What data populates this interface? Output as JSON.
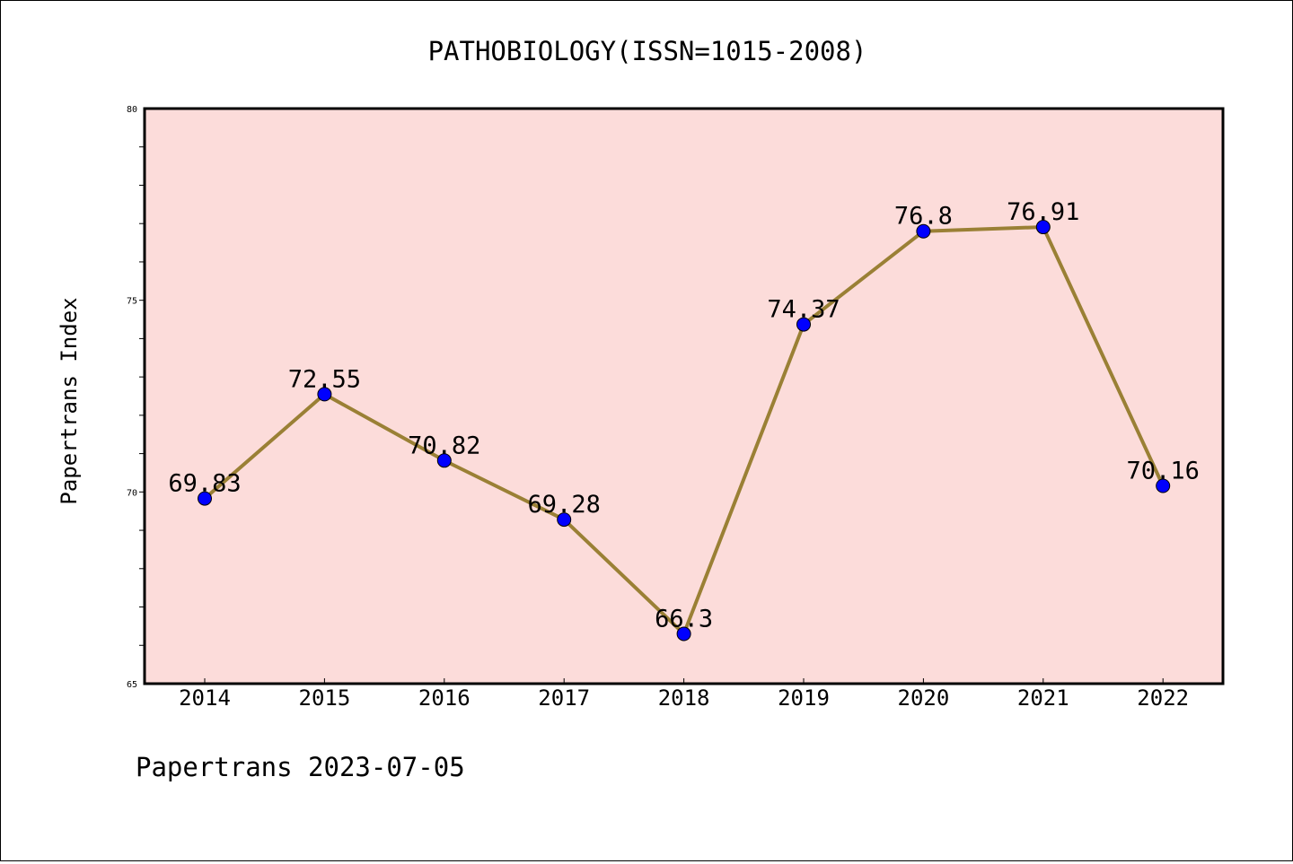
{
  "chart_data": {
    "type": "line",
    "title": "PATHOBIOLOGY(ISSN=1015-2008)",
    "ylabel": "Papertrans Index",
    "xlabel": "",
    "categories": [
      "2014",
      "2015",
      "2016",
      "2017",
      "2018",
      "2019",
      "2020",
      "2021",
      "2022"
    ],
    "values": [
      69.83,
      72.55,
      70.82,
      69.28,
      66.3,
      74.37,
      76.8,
      76.91,
      70.16
    ],
    "data_labels": [
      "69.83",
      "72.55",
      "70.82",
      "69.28",
      "66.3",
      "74.37",
      "76.8",
      "76.91",
      "70.16"
    ],
    "ylim": [
      65,
      80
    ],
    "yticks": [
      "65",
      "70",
      "75",
      "80"
    ],
    "grid": false,
    "colors": {
      "plot_background": "#fcdcda",
      "line": "#9a8035",
      "marker": "#0000ff"
    }
  },
  "footer": {
    "text": "Papertrans 2023-07-05"
  }
}
